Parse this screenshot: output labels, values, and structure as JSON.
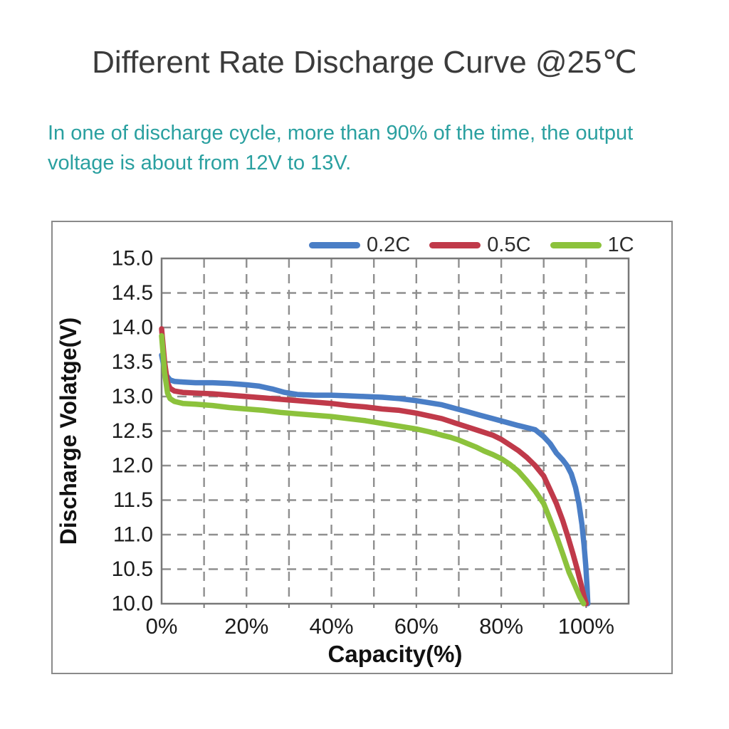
{
  "page": {
    "title": "Different Rate Discharge Curve @25℃",
    "title_color": "#3b3b3b",
    "subtitle_line1": "In one of discharge cycle, more than 90% of the time, the output",
    "subtitle_line2": "voltage is about from 12V to 13V.",
    "subtitle_color": "#2aa0a0"
  },
  "chart_data": {
    "type": "line",
    "xlabel": "Capacity(%)",
    "ylabel": "Discharge Volatge(V)",
    "xlim": [
      0,
      110
    ],
    "ylim": [
      10.0,
      15.0
    ],
    "x_grid_step": 10,
    "y_grid_step": 0.5,
    "grid": true,
    "grid_color": "#8f8f8f",
    "frame_color": "#787878",
    "tick_label_color": "#1c1c1c",
    "axis_title_color": "#111111",
    "legend_position": "top",
    "x_tick_labels": [
      "0%",
      "20%",
      "40%",
      "60%",
      "80%",
      "100%"
    ],
    "x_tick_values": [
      0,
      20,
      40,
      60,
      80,
      100
    ],
    "y_tick_labels": [
      "15.0",
      "14.5",
      "14.0",
      "13.5",
      "13.0",
      "12.5",
      "12.0",
      "11.5",
      "11.0",
      "10.5",
      "10.0"
    ],
    "y_tick_values": [
      15.0,
      14.5,
      14.0,
      13.5,
      13.0,
      12.5,
      12.0,
      11.5,
      11.0,
      10.5,
      10.0
    ],
    "series": [
      {
        "name": "0.2C",
        "color": "#4a7ec6",
        "points": [
          [
            0,
            13.6
          ],
          [
            0.6,
            13.42
          ],
          [
            1.2,
            13.3
          ],
          [
            2,
            13.24
          ],
          [
            3,
            13.22
          ],
          [
            5,
            13.21
          ],
          [
            8,
            13.2
          ],
          [
            12,
            13.2
          ],
          [
            16,
            13.19
          ],
          [
            20,
            13.17
          ],
          [
            23,
            13.15
          ],
          [
            26,
            13.11
          ],
          [
            29,
            13.06
          ],
          [
            32,
            13.03
          ],
          [
            36,
            13.02
          ],
          [
            40,
            13.02
          ],
          [
            44,
            13.01
          ],
          [
            48,
            13.0
          ],
          [
            52,
            12.99
          ],
          [
            56,
            12.97
          ],
          [
            60,
            12.94
          ],
          [
            63,
            12.91
          ],
          [
            66,
            12.88
          ],
          [
            69,
            12.83
          ],
          [
            72,
            12.78
          ],
          [
            75,
            12.73
          ],
          [
            78,
            12.68
          ],
          [
            81,
            12.63
          ],
          [
            84,
            12.58
          ],
          [
            86,
            12.55
          ],
          [
            88,
            12.52
          ],
          [
            90,
            12.42
          ],
          [
            91.5,
            12.32
          ],
          [
            93,
            12.18
          ],
          [
            94.5,
            12.08
          ],
          [
            95.5,
            12.0
          ],
          [
            96.5,
            11.88
          ],
          [
            97.5,
            11.68
          ],
          [
            98.3,
            11.45
          ],
          [
            99,
            11.15
          ],
          [
            99.5,
            10.85
          ],
          [
            99.9,
            10.55
          ],
          [
            100.2,
            10.25
          ],
          [
            100.4,
            10.0
          ]
        ]
      },
      {
        "name": "0.5C",
        "color": "#c03a4a",
        "points": [
          [
            0,
            13.98
          ],
          [
            0.7,
            13.5
          ],
          [
            1.4,
            13.2
          ],
          [
            2,
            13.12
          ],
          [
            3,
            13.08
          ],
          [
            5,
            13.06
          ],
          [
            8,
            13.05
          ],
          [
            12,
            13.04
          ],
          [
            16,
            13.02
          ],
          [
            20,
            13.0
          ],
          [
            24,
            12.98
          ],
          [
            28,
            12.96
          ],
          [
            32,
            12.94
          ],
          [
            36,
            12.92
          ],
          [
            40,
            12.9
          ],
          [
            44,
            12.87
          ],
          [
            48,
            12.85
          ],
          [
            52,
            12.82
          ],
          [
            56,
            12.8
          ],
          [
            60,
            12.76
          ],
          [
            63,
            12.72
          ],
          [
            66,
            12.68
          ],
          [
            69,
            12.62
          ],
          [
            72,
            12.56
          ],
          [
            75,
            12.5
          ],
          [
            78,
            12.44
          ],
          [
            80,
            12.38
          ],
          [
            82,
            12.3
          ],
          [
            84,
            12.22
          ],
          [
            86,
            12.12
          ],
          [
            88,
            12.0
          ],
          [
            90,
            11.85
          ],
          [
            91.5,
            11.65
          ],
          [
            93,
            11.45
          ],
          [
            94.5,
            11.2
          ],
          [
            95.8,
            10.95
          ],
          [
            96.9,
            10.72
          ],
          [
            97.9,
            10.5
          ],
          [
            98.8,
            10.28
          ],
          [
            99.5,
            10.1
          ],
          [
            100,
            10.0
          ]
        ]
      },
      {
        "name": "1C",
        "color": "#8cc23c",
        "points": [
          [
            0,
            13.88
          ],
          [
            0.7,
            13.35
          ],
          [
            1.4,
            13.05
          ],
          [
            2,
            12.97
          ],
          [
            3,
            12.93
          ],
          [
            5,
            12.9
          ],
          [
            8,
            12.89
          ],
          [
            12,
            12.87
          ],
          [
            16,
            12.84
          ],
          [
            20,
            12.82
          ],
          [
            24,
            12.8
          ],
          [
            28,
            12.77
          ],
          [
            32,
            12.75
          ],
          [
            36,
            12.73
          ],
          [
            40,
            12.71
          ],
          [
            44,
            12.68
          ],
          [
            48,
            12.65
          ],
          [
            52,
            12.61
          ],
          [
            56,
            12.57
          ],
          [
            60,
            12.53
          ],
          [
            63,
            12.49
          ],
          [
            66,
            12.44
          ],
          [
            68,
            12.41
          ],
          [
            70,
            12.37
          ],
          [
            72,
            12.32
          ],
          [
            74,
            12.27
          ],
          [
            76,
            12.21
          ],
          [
            78,
            12.16
          ],
          [
            80,
            12.1
          ],
          [
            82,
            12.02
          ],
          [
            84,
            11.92
          ],
          [
            86,
            11.78
          ],
          [
            88,
            11.63
          ],
          [
            90,
            11.45
          ],
          [
            91.5,
            11.22
          ],
          [
            93,
            10.98
          ],
          [
            94.5,
            10.72
          ],
          [
            96,
            10.45
          ],
          [
            97.3,
            10.27
          ],
          [
            98.5,
            10.1
          ],
          [
            99.4,
            10.0
          ]
        ]
      }
    ]
  }
}
